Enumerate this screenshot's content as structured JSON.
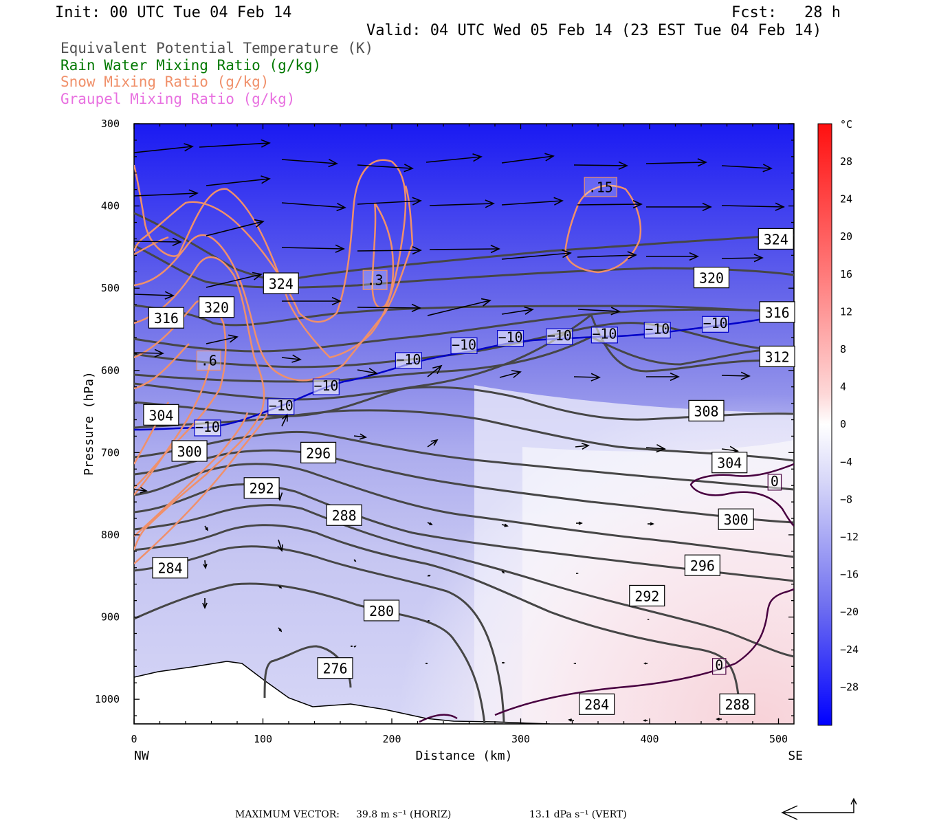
{
  "header": {
    "init": "Init: 00 UTC Tue 04 Feb 14",
    "fcst": "Fcst:   28 h",
    "valid": "Valid: 04 UTC Wed 05 Feb 14 (23 EST Tue 04 Feb 14)"
  },
  "legend": [
    {
      "label": "Equivalent Potential Temperature (K)",
      "color": "#505050"
    },
    {
      "label": "Rain Water Mixing Ratio (g/kg)",
      "color": "#007800"
    },
    {
      "label": "Snow Mixing Ratio (g/kg)",
      "color": "#f0906a"
    },
    {
      "label": "Graupel Mixing Ratio (g/kg)",
      "color": "#e870e0"
    }
  ],
  "chart_data": {
    "type": "cross-section",
    "xlabel": "Distance (km)",
    "ylabel": "Pressure (hPa)",
    "xlim": [
      0,
      512
    ],
    "ylim": [
      1030,
      300
    ],
    "x_ticks": [
      0,
      100,
      200,
      300,
      400,
      500
    ],
    "y_ticks": [
      300,
      400,
      500,
      600,
      700,
      800,
      900,
      1000
    ],
    "left_end_label": "NW",
    "right_end_label": "SE",
    "colorbar": {
      "unit": "°C",
      "labels": [
        "28",
        "24",
        "20",
        "16",
        "12",
        "8",
        "4",
        "0",
        "−4",
        "−8",
        "−12",
        "−16",
        "−20",
        "−24",
        "−28"
      ]
    },
    "theta_e_labels": [
      {
        "text": "324",
        "x": 498,
        "p": 440
      },
      {
        "text": "320",
        "x": 448,
        "p": 487
      },
      {
        "text": "316",
        "x": 499,
        "p": 529
      },
      {
        "text": "312",
        "x": 499,
        "p": 583
      },
      {
        "text": "308",
        "x": 444,
        "p": 649
      },
      {
        "text": "304",
        "x": 462,
        "p": 712
      },
      {
        "text": "300",
        "x": 467,
        "p": 781
      },
      {
        "text": "296",
        "x": 441,
        "p": 837
      },
      {
        "text": "292",
        "x": 398,
        "p": 874
      },
      {
        "text": "288",
        "x": 468,
        "p": 1006
      },
      {
        "text": "284",
        "x": 359,
        "p": 1006
      },
      {
        "text": "280",
        "x": 192,
        "p": 892
      },
      {
        "text": "276",
        "x": 156,
        "p": 962
      },
      {
        "text": "288",
        "x": 163,
        "p": 776
      },
      {
        "text": "292",
        "x": 99,
        "p": 743
      },
      {
        "text": "296",
        "x": 143,
        "p": 700
      },
      {
        "text": "300",
        "x": 43,
        "p": 698
      },
      {
        "text": "304",
        "x": 21,
        "p": 654
      },
      {
        "text": "284",
        "x": 28,
        "p": 840
      },
      {
        "text": "316",
        "x": 25,
        "p": 536
      },
      {
        "text": "320",
        "x": 64,
        "p": 523
      },
      {
        "text": "324",
        "x": 114,
        "p": 494
      }
    ],
    "isotherm_labels": [
      {
        "text": "−10",
        "x": 57,
        "p": 670
      },
      {
        "text": "−10",
        "x": 114,
        "p": 644
      },
      {
        "text": "−10",
        "x": 149,
        "p": 620
      },
      {
        "text": "−10",
        "x": 213,
        "p": 588
      },
      {
        "text": "−10",
        "x": 256,
        "p": 570
      },
      {
        "text": "−10",
        "x": 292,
        "p": 561
      },
      {
        "text": "−10",
        "x": 330,
        "p": 559
      },
      {
        "text": "−10",
        "x": 365,
        "p": 557
      },
      {
        "text": "−10",
        "x": 406,
        "p": 551
      },
      {
        "text": "−10",
        "x": 451,
        "p": 544
      },
      {
        "text": "0",
        "x": 497,
        "p": 736
      },
      {
        "text": "0",
        "x": 454,
        "p": 960
      }
    ],
    "snow_labels": [
      {
        "text": ".15",
        "x": 362,
        "p": 377
      },
      {
        "text": ".3",
        "x": 187,
        "p": 490
      },
      {
        "text": ".6",
        "x": 58,
        "p": 588
      }
    ]
  },
  "footer": {
    "max_vector_label": "MAXIMUM VECTOR:",
    "horiz": "39.8 m s⁻¹ (HORIZ)",
    "vert": "13.1 dPa s⁻¹ (VERT)"
  },
  "colors": {
    "theta_e": "#464646",
    "isotherm": "#0000c8",
    "zero_isotherm": "#480040",
    "snow": "#f0906a",
    "terrain": "#000000"
  }
}
